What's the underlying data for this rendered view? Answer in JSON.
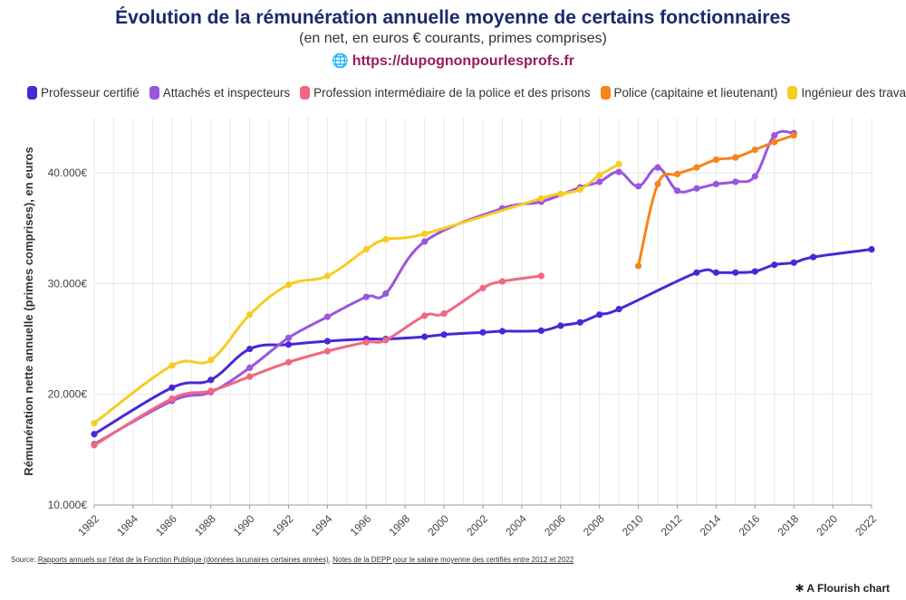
{
  "header": {
    "title": "Évolution de la rémunération annuelle moyenne de certains fonctionnaires",
    "subtitle": "(en net, en euros € courants, primes comprises)",
    "url": "https://dupognonpourlesprofs.fr",
    "url_icon": "globe-icon"
  },
  "chart_data": {
    "type": "line",
    "title": "Évolution de la rémunération annuelle moyenne de certains fonctionnaires",
    "subtitle": "(en net, en euros € courants, primes comprises)",
    "xlabel": "",
    "ylabel": "Rémunération nette annuelle (primes comprises), en euros",
    "xlim": [
      1982,
      2022
    ],
    "ylim": [
      10000,
      45000
    ],
    "x_ticks": [
      "1982",
      "1984",
      "1986",
      "1988",
      "1990",
      "1992",
      "1994",
      "1996",
      "1998",
      "2000",
      "2002",
      "2004",
      "2006",
      "2008",
      "2010",
      "2012",
      "2014",
      "2016",
      "2018",
      "2020",
      "2022"
    ],
    "y_ticks": [
      {
        "value": 10000,
        "label": "10.000€"
      },
      {
        "value": 20000,
        "label": "20.000€"
      },
      {
        "value": 30000,
        "label": "30.000€"
      },
      {
        "value": 40000,
        "label": "40.000€"
      }
    ],
    "legend_position": "top",
    "series": [
      {
        "name": "Professeur certifié",
        "color": "#4a27d6",
        "points": [
          [
            1982,
            16400
          ],
          [
            1986,
            20600
          ],
          [
            1988,
            21300
          ],
          [
            1990,
            24100
          ],
          [
            1992,
            24500
          ],
          [
            1994,
            24800
          ],
          [
            1996,
            25000
          ],
          [
            1997,
            25000
          ],
          [
            1999,
            25200
          ],
          [
            2000,
            25400
          ],
          [
            2002,
            25600
          ],
          [
            2003,
            25700
          ],
          [
            2005,
            25750
          ],
          [
            2006,
            26200
          ],
          [
            2007,
            26500
          ],
          [
            2008,
            27200
          ],
          [
            2009,
            27700
          ],
          [
            2013,
            31000
          ],
          [
            2014,
            31000
          ],
          [
            2015,
            31000
          ],
          [
            2016,
            31100
          ],
          [
            2017,
            31700
          ],
          [
            2018,
            31900
          ],
          [
            2019,
            32400
          ],
          [
            2022,
            33100
          ]
        ]
      },
      {
        "name": "Attachés et inspecteurs",
        "color": "#9b55e0",
        "points": [
          [
            1982,
            15500
          ],
          [
            1986,
            19400
          ],
          [
            1988,
            20200
          ],
          [
            1990,
            22400
          ],
          [
            1992,
            25100
          ],
          [
            1994,
            27000
          ],
          [
            1996,
            28800
          ],
          [
            1997,
            29100
          ],
          [
            1999,
            33800
          ],
          [
            2003,
            36800
          ],
          [
            2005,
            37400
          ],
          [
            2007,
            38700
          ],
          [
            2008,
            39200
          ],
          [
            2009,
            40100
          ],
          [
            2010,
            38800
          ],
          [
            2011,
            40500
          ],
          [
            2012,
            38400
          ],
          [
            2013,
            38600
          ],
          [
            2014,
            39000
          ],
          [
            2015,
            39200
          ],
          [
            2016,
            39700
          ],
          [
            2017,
            43400
          ],
          [
            2018,
            43600
          ]
        ]
      },
      {
        "name": "Profession intermédiaire de la police et des prisons",
        "color": "#f06883",
        "points": [
          [
            1982,
            15400
          ],
          [
            1986,
            19600
          ],
          [
            1988,
            20300
          ],
          [
            1990,
            21600
          ],
          [
            1992,
            22900
          ],
          [
            1994,
            23900
          ],
          [
            1996,
            24700
          ],
          [
            1997,
            24900
          ],
          [
            1999,
            27100
          ],
          [
            2000,
            27300
          ],
          [
            2002,
            29600
          ],
          [
            2003,
            30200
          ],
          [
            2005,
            30700
          ]
        ]
      },
      {
        "name": "Police (capitaine et lieutenant)",
        "color": "#f7831c",
        "points": [
          [
            2010,
            31600
          ],
          [
            2011,
            39000
          ],
          [
            2012,
            39900
          ],
          [
            2013,
            40500
          ],
          [
            2014,
            41200
          ],
          [
            2015,
            41400
          ],
          [
            2016,
            42100
          ],
          [
            2017,
            42800
          ],
          [
            2018,
            43400
          ]
        ]
      },
      {
        "name": "Ingénieur des travaux",
        "color": "#f7cc20",
        "points": [
          [
            1982,
            17400
          ],
          [
            1986,
            22600
          ],
          [
            1988,
            23100
          ],
          [
            1990,
            27200
          ],
          [
            1992,
            29900
          ],
          [
            1994,
            30700
          ],
          [
            1996,
            33100
          ],
          [
            1997,
            34000
          ],
          [
            1999,
            34500
          ],
          [
            2005,
            37700
          ],
          [
            2006,
            38100
          ],
          [
            2007,
            38500
          ],
          [
            2008,
            39800
          ],
          [
            2009,
            40800
          ]
        ]
      }
    ]
  },
  "footer": {
    "source_label": "Source:",
    "source_link_1": "Rapports annuels sur l'état de la Fonction Publique (données lacunaires certaines années)",
    "source_sep": ", ",
    "source_link_2": "Notes de la DEPP pour le salaire moyenne des certifiés entre 2012 et 2022",
    "attribution": "A Flourish chart",
    "attribution_icon": "flourish-asterisk-icon"
  }
}
